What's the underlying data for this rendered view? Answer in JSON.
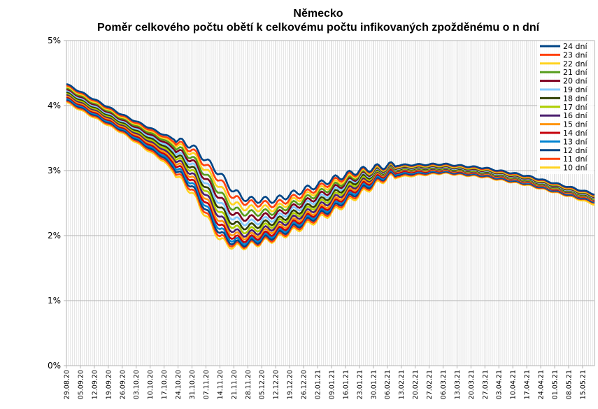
{
  "chart_data": {
    "type": "line",
    "title": "Německo",
    "subtitle": "Poměr celkového počtu obětí k celkovému počtu infikovaných zpožděnému o n dní",
    "ylim": [
      0,
      5
    ],
    "y_ticks": [
      "0%",
      "1%",
      "2%",
      "3%",
      "4%",
      "5%"
    ],
    "x_start": "2020-08-29",
    "x_end": "2021-05-21",
    "x_ticks": [
      "29.08.20",
      "05.09.20",
      "12.09.20",
      "19.09.20",
      "26.09.20",
      "03.10.20",
      "10.10.20",
      "17.10.20",
      "24.10.20",
      "31.10.20",
      "07.11.20",
      "14.11.20",
      "21.11.20",
      "28.11.20",
      "05.12.20",
      "12.12.20",
      "19.12.20",
      "26.12.20",
      "02.01.21",
      "09.01.21",
      "16.01.21",
      "23.01.21",
      "30.01.21",
      "06.02.21",
      "13.02.21",
      "20.02.21",
      "27.02.21",
      "06.03.21",
      "13.03.21",
      "20.03.21",
      "27.03.21",
      "03.04.21",
      "10.04.21",
      "17.04.21",
      "24.04.21",
      "01.05.21",
      "08.05.21",
      "15.05.21"
    ],
    "grid": true,
    "legend_position": "top-right",
    "series": [
      {
        "name": "24 dní",
        "color": "#004586",
        "x": [
          "2020-08-29",
          "2020-09-26",
          "2020-10-17",
          "2020-10-31",
          "2020-11-14",
          "2020-11-21",
          "2020-11-28",
          "2020-12-12",
          "2020-12-26",
          "2021-01-09",
          "2021-01-23",
          "2021-02-06",
          "2021-03-06",
          "2021-03-27",
          "2021-04-17",
          "2021-05-08",
          "2021-05-21"
        ],
        "values": [
          4.33,
          3.86,
          3.55,
          3.38,
          2.95,
          2.68,
          2.55,
          2.55,
          2.7,
          2.86,
          3.0,
          3.08,
          3.1,
          3.04,
          2.92,
          2.75,
          2.64
        ]
      },
      {
        "name": "23 dní",
        "color": "#ff420e",
        "x": [
          "2020-08-29",
          "2020-09-26",
          "2020-10-17",
          "2020-10-31",
          "2020-11-14",
          "2020-11-21",
          "2020-11-28",
          "2020-12-12",
          "2020-12-26",
          "2021-01-09",
          "2021-01-23",
          "2021-02-06",
          "2021-03-06",
          "2021-03-27",
          "2021-04-17",
          "2021-05-08",
          "2021-05-21"
        ],
        "values": [
          4.31,
          3.84,
          3.52,
          3.32,
          2.85,
          2.58,
          2.5,
          2.48,
          2.64,
          2.82,
          2.98,
          3.07,
          3.09,
          3.03,
          2.91,
          2.74,
          2.63
        ]
      },
      {
        "name": "22 dní",
        "color": "#ffd320",
        "x": [
          "2020-08-29",
          "2020-09-26",
          "2020-10-17",
          "2020-10-31",
          "2020-11-14",
          "2020-11-21",
          "2020-11-28",
          "2020-12-12",
          "2020-12-26",
          "2021-01-09",
          "2021-01-23",
          "2021-02-06",
          "2021-03-06",
          "2021-03-27",
          "2021-04-17",
          "2021-05-08",
          "2021-05-21"
        ],
        "values": [
          4.29,
          3.82,
          3.5,
          3.27,
          2.75,
          2.48,
          2.42,
          2.42,
          2.6,
          2.78,
          2.96,
          3.06,
          3.08,
          3.02,
          2.9,
          2.73,
          2.62
        ]
      },
      {
        "name": "21 dní",
        "color": "#579d1c",
        "x": [
          "2020-08-29",
          "2020-09-26",
          "2020-10-17",
          "2020-10-31",
          "2020-11-14",
          "2020-11-21",
          "2020-11-28",
          "2020-12-12",
          "2020-12-26",
          "2021-01-09",
          "2021-01-23",
          "2021-02-06",
          "2021-03-06",
          "2021-03-27",
          "2021-04-17",
          "2021-05-08",
          "2021-05-21"
        ],
        "values": [
          4.27,
          3.8,
          3.47,
          3.21,
          2.66,
          2.4,
          2.34,
          2.37,
          2.55,
          2.74,
          2.94,
          3.05,
          3.07,
          3.01,
          2.89,
          2.72,
          2.61
        ]
      },
      {
        "name": "20 dní",
        "color": "#7e0021",
        "x": [
          "2020-08-29",
          "2020-09-26",
          "2020-10-17",
          "2020-10-31",
          "2020-11-14",
          "2020-11-21",
          "2020-11-28",
          "2020-12-12",
          "2020-12-26",
          "2021-01-09",
          "2021-01-23",
          "2021-02-06",
          "2021-03-06",
          "2021-03-27",
          "2021-04-17",
          "2021-05-08",
          "2021-05-21"
        ],
        "values": [
          4.25,
          3.78,
          3.44,
          3.16,
          2.58,
          2.32,
          2.26,
          2.32,
          2.5,
          2.7,
          2.92,
          3.04,
          3.06,
          3.0,
          2.88,
          2.71,
          2.6
        ]
      },
      {
        "name": "19 dní",
        "color": "#83caff",
        "x": [
          "2020-08-29",
          "2020-09-26",
          "2020-10-17",
          "2020-10-31",
          "2020-11-14",
          "2020-11-21",
          "2020-11-28",
          "2020-12-12",
          "2020-12-26",
          "2021-01-09",
          "2021-01-23",
          "2021-02-06",
          "2021-03-06",
          "2021-03-27",
          "2021-04-17",
          "2021-05-08",
          "2021-05-21"
        ],
        "values": [
          4.23,
          3.76,
          3.41,
          3.11,
          2.5,
          2.25,
          2.19,
          2.27,
          2.46,
          2.66,
          2.9,
          3.03,
          3.05,
          2.99,
          2.87,
          2.7,
          2.59
        ]
      },
      {
        "name": "18 dní",
        "color": "#314004",
        "x": [
          "2020-08-29",
          "2020-09-26",
          "2020-10-17",
          "2020-10-31",
          "2020-11-14",
          "2020-11-21",
          "2020-11-28",
          "2020-12-12",
          "2020-12-26",
          "2021-01-09",
          "2021-01-23",
          "2021-02-06",
          "2021-03-06",
          "2021-03-27",
          "2021-04-17",
          "2021-05-08",
          "2021-05-21"
        ],
        "values": [
          4.21,
          3.74,
          3.38,
          3.06,
          2.43,
          2.18,
          2.13,
          2.22,
          2.41,
          2.62,
          2.87,
          3.02,
          3.04,
          2.98,
          2.86,
          2.69,
          2.58
        ]
      },
      {
        "name": "17 dní",
        "color": "#aecf00",
        "x": [
          "2020-08-29",
          "2020-09-26",
          "2020-10-17",
          "2020-10-31",
          "2020-11-14",
          "2020-11-21",
          "2020-11-28",
          "2020-12-12",
          "2020-12-26",
          "2021-01-09",
          "2021-01-23",
          "2021-02-06",
          "2021-03-06",
          "2021-03-27",
          "2021-04-17",
          "2021-05-08",
          "2021-05-21"
        ],
        "values": [
          4.19,
          3.72,
          3.35,
          3.01,
          2.36,
          2.12,
          2.07,
          2.18,
          2.37,
          2.58,
          2.84,
          3.01,
          3.03,
          2.97,
          2.85,
          2.68,
          2.57
        ]
      },
      {
        "name": "16 dní",
        "color": "#4b1f6f",
        "x": [
          "2020-08-29",
          "2020-09-26",
          "2020-10-17",
          "2020-10-31",
          "2020-11-14",
          "2020-11-21",
          "2020-11-28",
          "2020-12-12",
          "2020-12-26",
          "2021-01-09",
          "2021-01-23",
          "2021-02-06",
          "2021-03-06",
          "2021-03-27",
          "2021-04-17",
          "2021-05-08",
          "2021-05-21"
        ],
        "values": [
          4.17,
          3.7,
          3.32,
          2.96,
          2.29,
          2.06,
          2.02,
          2.14,
          2.33,
          2.54,
          2.81,
          3.0,
          3.02,
          2.96,
          2.84,
          2.67,
          2.56
        ]
      },
      {
        "name": "15 dní",
        "color": "#ff950e",
        "x": [
          "2020-08-29",
          "2020-09-26",
          "2020-10-17",
          "2020-10-31",
          "2020-11-14",
          "2020-11-21",
          "2020-11-28",
          "2020-12-12",
          "2020-12-26",
          "2021-01-09",
          "2021-01-23",
          "2021-02-06",
          "2021-03-06",
          "2021-03-27",
          "2021-04-17",
          "2021-05-08",
          "2021-05-21"
        ],
        "values": [
          4.15,
          3.68,
          3.29,
          2.91,
          2.22,
          2.01,
          1.98,
          2.1,
          2.29,
          2.5,
          2.78,
          2.99,
          3.01,
          2.95,
          2.83,
          2.66,
          2.55
        ]
      },
      {
        "name": "14 dní",
        "color": "#c5000b",
        "x": [
          "2020-08-29",
          "2020-09-26",
          "2020-10-17",
          "2020-10-31",
          "2020-11-14",
          "2020-11-21",
          "2020-11-28",
          "2020-12-12",
          "2020-12-26",
          "2021-01-09",
          "2021-01-23",
          "2021-02-06",
          "2021-03-06",
          "2021-03-27",
          "2021-04-17",
          "2021-05-08",
          "2021-05-21"
        ],
        "values": [
          4.13,
          3.66,
          3.26,
          2.86,
          2.16,
          1.96,
          1.94,
          2.06,
          2.26,
          2.47,
          2.75,
          2.97,
          3.0,
          2.94,
          2.82,
          2.65,
          2.54
        ]
      },
      {
        "name": "13 dní",
        "color": "#0084d1",
        "x": [
          "2020-08-29",
          "2020-09-26",
          "2020-10-17",
          "2020-10-31",
          "2020-11-14",
          "2020-11-21",
          "2020-11-28",
          "2020-12-12",
          "2020-12-26",
          "2021-01-09",
          "2021-01-23",
          "2021-02-06",
          "2021-03-06",
          "2021-03-27",
          "2021-04-17",
          "2021-05-08",
          "2021-05-21"
        ],
        "values": [
          4.11,
          3.64,
          3.23,
          2.81,
          2.1,
          1.92,
          1.91,
          2.03,
          2.23,
          2.44,
          2.72,
          2.95,
          2.99,
          2.93,
          2.81,
          2.64,
          2.53
        ]
      },
      {
        "name": "12 dní",
        "color": "#004586",
        "x": [
          "2020-08-29",
          "2020-09-26",
          "2020-10-17",
          "2020-10-31",
          "2020-11-14",
          "2020-11-21",
          "2020-11-28",
          "2020-12-12",
          "2020-12-26",
          "2021-01-09",
          "2021-01-23",
          "2021-02-06",
          "2021-03-06",
          "2021-03-27",
          "2021-04-17",
          "2021-05-08",
          "2021-05-21"
        ],
        "values": [
          4.09,
          3.62,
          3.2,
          2.76,
          2.04,
          1.88,
          1.88,
          2.0,
          2.2,
          2.41,
          2.69,
          2.93,
          2.98,
          2.92,
          2.8,
          2.63,
          2.52
        ]
      },
      {
        "name": "11 dní",
        "color": "#ff420e",
        "x": [
          "2020-08-29",
          "2020-09-26",
          "2020-10-17",
          "2020-10-31",
          "2020-11-14",
          "2020-11-21",
          "2020-11-28",
          "2020-12-12",
          "2020-12-26",
          "2021-01-09",
          "2021-01-23",
          "2021-02-06",
          "2021-03-06",
          "2021-03-27",
          "2021-04-17",
          "2021-05-08",
          "2021-05-21"
        ],
        "values": [
          4.07,
          3.6,
          3.17,
          2.71,
          1.99,
          1.85,
          1.86,
          1.97,
          2.17,
          2.38,
          2.66,
          2.91,
          2.97,
          2.91,
          2.79,
          2.62,
          2.51
        ]
      },
      {
        "name": "10 dní",
        "color": "#ffd320",
        "x": [
          "2020-08-29",
          "2020-09-26",
          "2020-10-17",
          "2020-10-31",
          "2020-11-14",
          "2020-11-21",
          "2020-11-28",
          "2020-12-12",
          "2020-12-26",
          "2021-01-09",
          "2021-01-23",
          "2021-02-06",
          "2021-03-06",
          "2021-03-27",
          "2021-04-17",
          "2021-05-08",
          "2021-05-21"
        ],
        "values": [
          4.05,
          3.58,
          3.14,
          2.66,
          1.94,
          1.82,
          1.84,
          1.95,
          2.14,
          2.35,
          2.63,
          2.89,
          2.96,
          2.9,
          2.78,
          2.61,
          2.48
        ]
      }
    ]
  }
}
